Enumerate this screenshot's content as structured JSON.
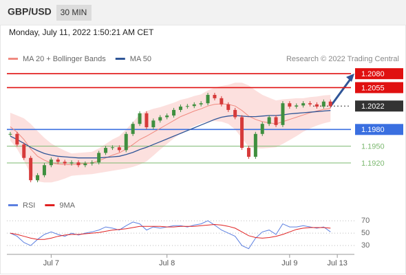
{
  "header": {
    "symbol": "GBP/USD",
    "timeframe": "30 MIN",
    "date": "Monday, July 11, 2022 1:50:21 AM CET"
  },
  "credit": "Research © 2022 Trading Central",
  "chart_data": [
    {
      "type": "candlestick",
      "up_color": "#3f8f3f",
      "down_color": "#d63a3a",
      "close": [
        1.1972,
        1.1953,
        1.1929,
        1.1889,
        1.1898,
        1.1916,
        1.1926,
        1.1922,
        1.1919,
        1.1921,
        1.1916,
        1.1919,
        1.1921,
        1.1938,
        1.1947,
        1.1948,
        1.1943,
        1.1972,
        1.199,
        1.2009,
        1.1984,
        1.1996,
        1.2002,
        1.2005,
        1.2015,
        1.2021,
        1.2022,
        1.2025,
        1.2027,
        1.2042,
        1.2036,
        1.2025,
        1.2015,
        1.2002,
        1.1947,
        1.1931,
        1.1972,
        1.199,
        1.2002,
        1.1988,
        1.2027,
        1.2021,
        1.2023,
        1.2027,
        1.2025,
        1.2021,
        1.203,
        1.2022,
        null,
        null
      ],
      "series": [
        {
          "name": "MA 20 + Bollinger Bands",
          "color": "#f08a80",
          "band_color": "#fbd3d0",
          "values": [
            1.1985,
            1.1975,
            1.1962,
            1.1945,
            1.1932,
            1.1925,
            1.192,
            1.1918,
            1.1917,
            1.1917,
            1.1918,
            1.1919,
            1.192,
            1.1924,
            1.1929,
            1.1934,
            1.1938,
            1.1945,
            1.1953,
            1.1962,
            1.1968,
            1.1975,
            1.1982,
            1.1989,
            1.1996,
            1.2003,
            1.2008,
            1.2013,
            1.2017,
            1.2022,
            1.2025,
            1.2026,
            1.2025,
            1.2022,
            1.2014,
            1.2004,
            1.1998,
            1.1994,
            1.1992,
            1.199,
            1.1994,
            1.1998,
            1.2002,
            1.2006,
            1.201,
            1.2013,
            1.2016,
            1.2018,
            null,
            null
          ],
          "upper": [
            1.201,
            1.2005,
            1.2,
            1.199,
            1.1977,
            1.1965,
            1.1955,
            1.1948,
            1.1942,
            1.1937,
            1.1938,
            1.1939,
            1.194,
            1.1946,
            1.1954,
            1.1962,
            1.1968,
            1.198,
            1.1993,
            1.2007,
            1.2013,
            1.2017,
            1.202,
            1.2024,
            1.2028,
            1.2033,
            1.2036,
            1.204,
            1.2043,
            1.205,
            1.2055,
            1.2058,
            1.206,
            1.2064,
            1.2064,
            1.2059,
            1.205,
            1.2042,
            1.2037,
            1.2032,
            1.2034,
            1.2035,
            1.2036,
            1.2036,
            1.2038,
            1.2039,
            1.2041,
            1.2042,
            null,
            null
          ],
          "lower": [
            1.196,
            1.1945,
            1.1924,
            1.19,
            1.1887,
            1.1885,
            1.1885,
            1.1888,
            1.1892,
            1.1897,
            1.1898,
            1.1899,
            1.19,
            1.1902,
            1.1904,
            1.1906,
            1.1908,
            1.191,
            1.1913,
            1.1917,
            1.1923,
            1.1933,
            1.1944,
            1.1954,
            1.1964,
            1.1973,
            1.198,
            1.1986,
            1.1991,
            1.1994,
            1.1995,
            1.1994,
            1.199,
            1.198,
            1.1964,
            1.1949,
            1.1946,
            1.1946,
            1.1947,
            1.1948,
            1.1954,
            1.1961,
            1.1968,
            1.1976,
            1.1982,
            1.1987,
            1.1991,
            1.1994,
            null,
            null
          ]
        },
        {
          "name": "MA 50",
          "color": "#2f5597",
          "values": [
            1.1968,
            1.1962,
            1.1955,
            1.1948,
            1.1942,
            1.1937,
            1.1934,
            1.1932,
            1.1931,
            1.193,
            1.1929,
            1.1929,
            1.1929,
            1.1929,
            1.193,
            1.1931,
            1.1932,
            1.1935,
            1.1939,
            1.1944,
            1.1948,
            1.1953,
            1.1958,
            1.1963,
            1.1968,
            1.1973,
            1.1978,
            1.1983,
            1.1988,
            1.1993,
            1.1998,
            1.2002,
            1.2004,
            1.2005,
            1.2004,
            1.2003,
            1.2003,
            1.2004,
            1.2005,
            1.2005,
            1.2006,
            1.2008,
            1.2009,
            1.201,
            1.2011,
            1.2012,
            1.2013,
            1.2014,
            null,
            null
          ]
        }
      ],
      "levels": [
        {
          "value": 1.208,
          "label": "1.2080",
          "color": "#e01010",
          "box": true,
          "style": "solid"
        },
        {
          "value": 1.2055,
          "color": "#e01010",
          "box": true,
          "style": "solid"
        },
        {
          "value": 1.2022,
          "color": "#333333",
          "box": true,
          "style": "dotted"
        },
        {
          "value": 1.198,
          "label": "1.1980",
          "color": "#3a6fe0",
          "box": true,
          "style": "solid"
        },
        {
          "value": 1.195,
          "label": "1.1950",
          "color": "#7bb86f",
          "box": false,
          "style": "solid"
        },
        {
          "value": 1.192,
          "label": "1.1920",
          "color": "#7bb86f",
          "box": false,
          "style": "solid"
        }
      ],
      "ylim": [
        1.1867,
        1.2095
      ]
    },
    {
      "type": "line",
      "categories": [
        null,
        null,
        null,
        null,
        null,
        null,
        "Jul 7",
        null,
        null,
        null,
        null,
        null,
        null,
        null,
        null,
        null,
        null,
        null,
        null,
        null,
        null,
        null,
        null,
        "Jul 8",
        null,
        null,
        null,
        null,
        null,
        null,
        null,
        null,
        null,
        null,
        null,
        null,
        null,
        null,
        null,
        null,
        null,
        "Jul 9",
        null,
        null,
        null,
        null,
        null,
        null,
        "Jul 13",
        null
      ],
      "series": [
        {
          "name": "RSI",
          "color": "#5b7fe0",
          "values": [
            50,
            45,
            35,
            30,
            40,
            48,
            52,
            48,
            45,
            50,
            47,
            50,
            52,
            55,
            60,
            58,
            55,
            62,
            68,
            65,
            55,
            60,
            58,
            60,
            62,
            62,
            60,
            63,
            65,
            70,
            63,
            55,
            50,
            45,
            30,
            25,
            42,
            52,
            55,
            48,
            65,
            60,
            60,
            62,
            60,
            58,
            60,
            52,
            null,
            null
          ]
        },
        {
          "name": "9MA",
          "color": "#e02020",
          "values": [
            50,
            48,
            45,
            42,
            40,
            40,
            42,
            45,
            47,
            48,
            48,
            49,
            50,
            51,
            53,
            55,
            56,
            57,
            59,
            61,
            61,
            61,
            61,
            60,
            60,
            61,
            61,
            61,
            62,
            63,
            64,
            63,
            61,
            58,
            52,
            46,
            43,
            42,
            43,
            45,
            48,
            52,
            56,
            58,
            59,
            59,
            59,
            58,
            null,
            null
          ]
        }
      ],
      "ylim": [
        18,
        79
      ],
      "yticks": [
        30,
        50,
        70
      ]
    }
  ]
}
